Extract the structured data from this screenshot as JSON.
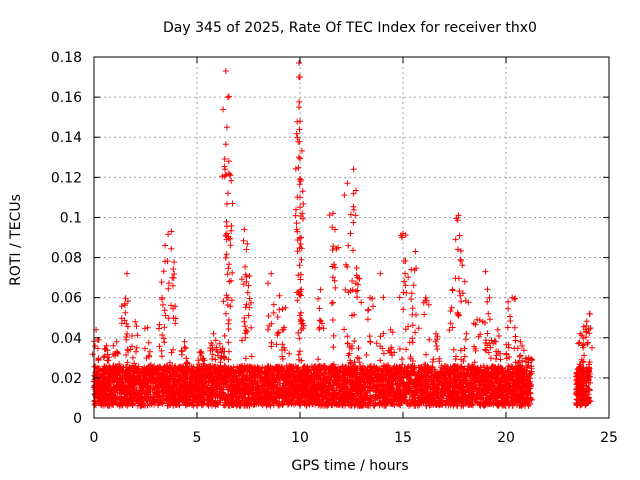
{
  "chart_data": {
    "type": "scatter",
    "title": "Day 345 of 2025, Rate Of TEC Index for receiver thx0",
    "xlabel": "GPS time / hours",
    "ylabel": "ROTI / TECUs",
    "xlim": [
      0,
      25
    ],
    "ylim": [
      0,
      0.18
    ],
    "xticks": [
      "0",
      "5",
      "10",
      "15",
      "20",
      "25"
    ],
    "yticks": [
      "0",
      "0.02",
      "0.04",
      "0.06",
      "0.08",
      "0.1",
      "0.12",
      "0.14",
      "0.16",
      "0.18"
    ],
    "grid": true,
    "marker": "+",
    "color": "#ff0000",
    "background_band": {
      "segments": [
        [
          0.0,
          21.25
        ],
        [
          23.4,
          24.1
        ]
      ],
      "low": 0.006,
      "high": 0.026
    },
    "spikes": [
      {
        "x": 0.1,
        "y": 0.044
      },
      {
        "x": 0.6,
        "y": 0.036
      },
      {
        "x": 1.1,
        "y": 0.038
      },
      {
        "x": 1.5,
        "y": 0.057
      },
      {
        "x": 1.6,
        "y": 0.072
      },
      {
        "x": 2.0,
        "y": 0.048
      },
      {
        "x": 2.6,
        "y": 0.045
      },
      {
        "x": 3.3,
        "y": 0.06
      },
      {
        "x": 3.45,
        "y": 0.086
      },
      {
        "x": 3.75,
        "y": 0.093
      },
      {
        "x": 3.8,
        "y": 0.07
      },
      {
        "x": 4.4,
        "y": 0.038
      },
      {
        "x": 5.2,
        "y": 0.033
      },
      {
        "x": 5.8,
        "y": 0.042
      },
      {
        "x": 6.1,
        "y": 0.037
      },
      {
        "x": 6.4,
        "y": 0.173
      },
      {
        "x": 6.5,
        "y": 0.16
      },
      {
        "x": 6.45,
        "y": 0.145
      },
      {
        "x": 6.55,
        "y": 0.128
      },
      {
        "x": 6.5,
        "y": 0.112
      },
      {
        "x": 6.45,
        "y": 0.092
      },
      {
        "x": 7.3,
        "y": 0.094
      },
      {
        "x": 7.4,
        "y": 0.084
      },
      {
        "x": 7.5,
        "y": 0.066
      },
      {
        "x": 8.6,
        "y": 0.072
      },
      {
        "x": 9.0,
        "y": 0.061
      },
      {
        "x": 9.3,
        "y": 0.055
      },
      {
        "x": 9.95,
        "y": 0.177
      },
      {
        "x": 10.0,
        "y": 0.17
      },
      {
        "x": 9.95,
        "y": 0.155
      },
      {
        "x": 10.0,
        "y": 0.148
      },
      {
        "x": 9.95,
        "y": 0.13
      },
      {
        "x": 10.0,
        "y": 0.11
      },
      {
        "x": 10.05,
        "y": 0.09
      },
      {
        "x": 11.0,
        "y": 0.064
      },
      {
        "x": 11.6,
        "y": 0.102
      },
      {
        "x": 11.7,
        "y": 0.094
      },
      {
        "x": 12.3,
        "y": 0.117
      },
      {
        "x": 12.45,
        "y": 0.092
      },
      {
        "x": 12.6,
        "y": 0.124
      },
      {
        "x": 12.7,
        "y": 0.101
      },
      {
        "x": 12.8,
        "y": 0.07
      },
      {
        "x": 13.4,
        "y": 0.06
      },
      {
        "x": 13.9,
        "y": 0.072
      },
      {
        "x": 14.4,
        "y": 0.044
      },
      {
        "x": 15.0,
        "y": 0.092
      },
      {
        "x": 15.1,
        "y": 0.072
      },
      {
        "x": 15.4,
        "y": 0.074
      },
      {
        "x": 15.6,
        "y": 0.083
      },
      {
        "x": 16.1,
        "y": 0.06
      },
      {
        "x": 16.6,
        "y": 0.042
      },
      {
        "x": 17.4,
        "y": 0.064
      },
      {
        "x": 17.7,
        "y": 0.101
      },
      {
        "x": 17.75,
        "y": 0.091
      },
      {
        "x": 18.0,
        "y": 0.068
      },
      {
        "x": 18.6,
        "y": 0.049
      },
      {
        "x": 19.0,
        "y": 0.073
      },
      {
        "x": 19.2,
        "y": 0.06
      },
      {
        "x": 19.6,
        "y": 0.044
      },
      {
        "x": 20.1,
        "y": 0.058
      },
      {
        "x": 20.3,
        "y": 0.06
      },
      {
        "x": 20.7,
        "y": 0.038
      },
      {
        "x": 21.1,
        "y": 0.03
      },
      {
        "x": 23.6,
        "y": 0.042
      },
      {
        "x": 23.9,
        "y": 0.046
      },
      {
        "x": 24.05,
        "y": 0.052
      }
    ]
  }
}
